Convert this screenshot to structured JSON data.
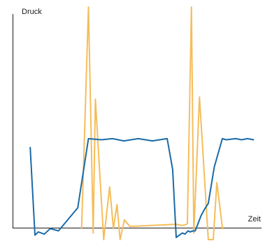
{
  "chart_data": {
    "type": "line",
    "xlabel": "Zeit",
    "ylabel": "Druck",
    "xlim": [
      0,
      100
    ],
    "ylim": [
      -6,
      100
    ],
    "grid": false,
    "legend": "none",
    "x": [
      3.6,
      5.6,
      7.0,
      9.5,
      12.0,
      15.5,
      23.6,
      28.1,
      33.6,
      38.2,
      43.0,
      49.0,
      55.0,
      61.2,
      63.5,
      65.0,
      67.6,
      68.7,
      70.0,
      70.8,
      72.2,
      73.0,
      75.5,
      77.0,
      78.5,
      81.0,
      84.4,
      86.1,
      90.0,
      92.5,
      95.0,
      97.5
    ],
    "series": [
      {
        "color": "#1a6aa8",
        "values": [
          36,
          -4,
          -2.5,
          -3.5,
          -1,
          -2,
          8.5,
          40,
          39.5,
          40,
          39,
          40,
          39,
          40,
          26,
          -5,
          -3,
          -3.5,
          -2,
          -2.5,
          -2,
          -2,
          5,
          8,
          10.5,
          27,
          40,
          39.5,
          40,
          39.5,
          40,
          39.5
        ]
      },
      {
        "color": "#f5bd5c",
        "values": [
          null,
          null,
          null,
          null,
          null,
          null,
          -1,
          100,
          -3,
          58,
          -6,
          18,
          -1,
          10,
          -6,
          3,
          0,
          1,
          0.5,
          0.5,
          1,
          1.5,
          100,
          -3,
          59,
          -6,
          -6,
          20,
          -1,
          null,
          null,
          null
        ],
        "x": [
          10,
          14,
          16,
          19,
          21,
          23,
          25.2,
          28.1,
          30.1,
          31.0,
          34.5,
          37.0,
          38.6,
          40.1,
          41.4,
          43.2,
          45.5,
          65.0,
          67.0,
          68.0,
          69.5,
          69.7,
          71.4,
          72.4,
          74.8,
          78.5,
          80.6,
          82.1,
          84.5,
          88,
          90,
          92
        ]
      }
    ]
  }
}
